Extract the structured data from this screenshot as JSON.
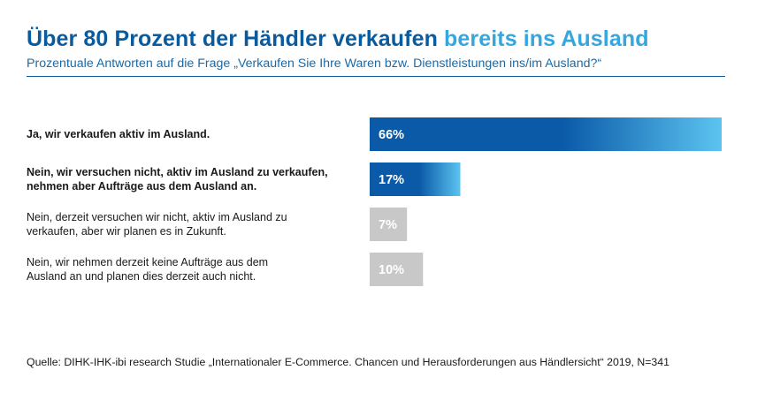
{
  "header": {
    "title_main": "Über 80 Prozent der Händler verkaufen",
    "title_accent": "bereits ins Ausland",
    "subtitle": "Prozentuale Antworten auf die Frage „Verkaufen Sie Ihre Waren bzw. Dienstleistungen ins/im Ausland?“"
  },
  "chart_data": {
    "type": "bar",
    "orientation": "horizontal",
    "title": "Über 80 Prozent der Händler verkaufen bereits ins Ausland",
    "xlim": [
      0,
      66
    ],
    "categories": [
      [
        "Ja, wir verkaufen aktiv im Ausland."
      ],
      [
        "Nein, wir versuchen nicht, aktiv im Ausland zu verkaufen,",
        "nehmen aber Aufträge aus dem Ausland an."
      ],
      [
        "Nein, derzeit versuchen wir nicht, aktiv im Ausland zu",
        "verkaufen, aber wir planen es in Zukunft."
      ],
      [
        "Nein, wir nehmen derzeit keine Aufträge aus dem",
        "Ausland an und planen dies derzeit auch nicht."
      ]
    ],
    "values": [
      66,
      17,
      7,
      10
    ],
    "value_labels": [
      "66%",
      "17%",
      "7%",
      "10%"
    ],
    "highlight": [
      true,
      true,
      false,
      false
    ],
    "colors": {
      "highlight_start": "#0a5aa8",
      "highlight_end": "#5cc4f0",
      "neutral": "#c8c8c8"
    }
  },
  "footer": {
    "source": "Quelle: DIHK-IHK-ibi research Studie „Internationaler E-Commerce. Chancen und Herausforderungen aus Händlersicht“ 2019, N=341"
  }
}
